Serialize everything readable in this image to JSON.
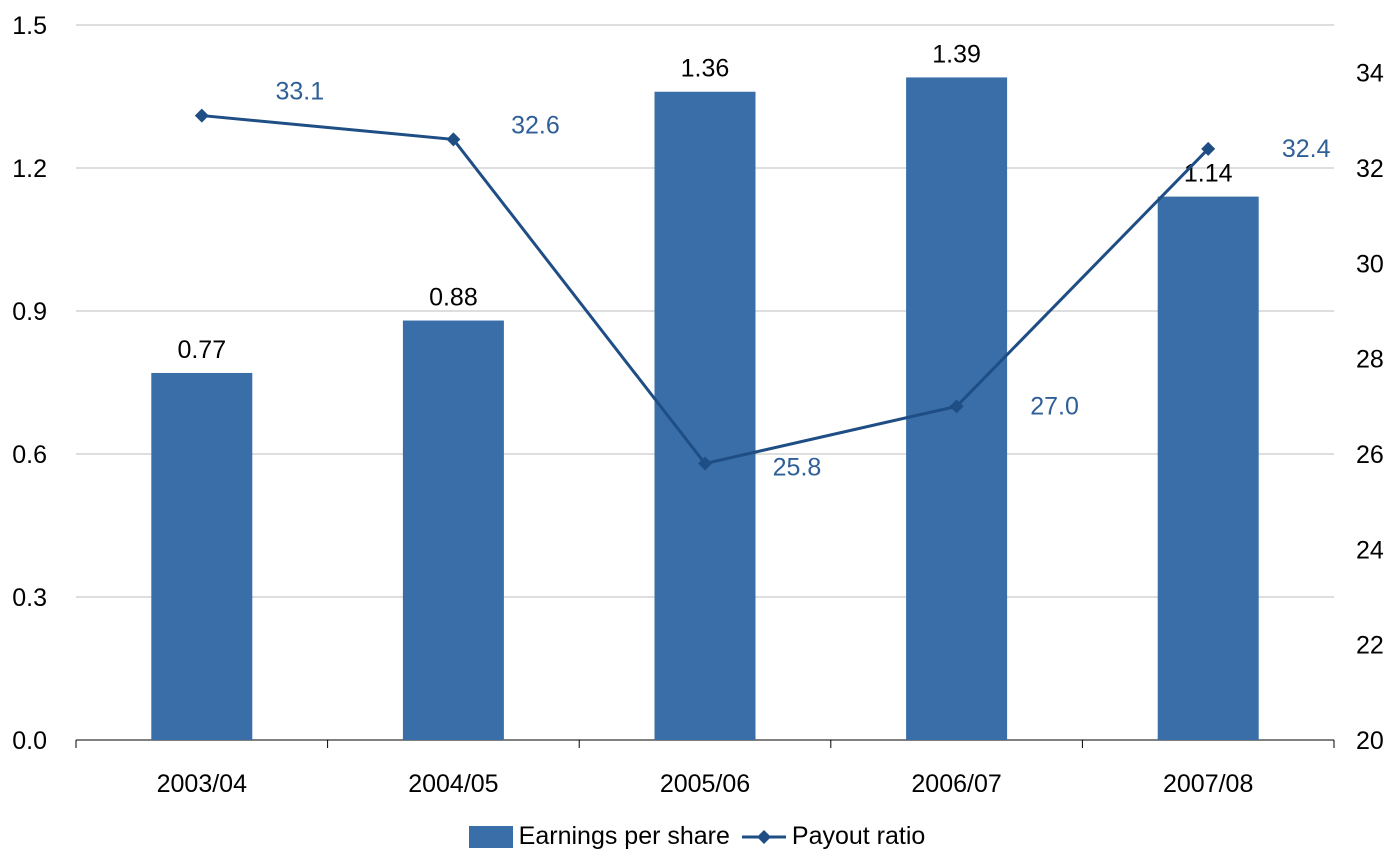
{
  "chart_data": {
    "type": "bar+line",
    "categories": [
      "2003/04",
      "2004/05",
      "2005/06",
      "2006/07",
      "2007/08"
    ],
    "series": [
      {
        "name": "Earnings per share",
        "type": "bar",
        "axis": "left",
        "values": [
          0.77,
          0.88,
          1.36,
          1.39,
          1.14
        ],
        "labels": [
          "0.77",
          "0.88",
          "1.36",
          "1.39",
          "1.14"
        ],
        "color": "#3A6EA9"
      },
      {
        "name": "Payout ratio",
        "type": "line",
        "axis": "right",
        "values": [
          33.1,
          32.6,
          25.8,
          27.0,
          32.4
        ],
        "labels": [
          "33.1",
          "32.6",
          "25.8",
          "27.0",
          "32.4"
        ],
        "color": "#1F4E85"
      }
    ],
    "y_left": {
      "min": 0,
      "max": 1.5,
      "ticks": [
        "0.0",
        "0.3",
        "0.6",
        "0.9",
        "1.2",
        "1.5"
      ]
    },
    "y_right": {
      "min": 20,
      "max": 35,
      "ticks": [
        "20",
        "22",
        "24",
        "26",
        "28",
        "30",
        "32",
        "34"
      ]
    },
    "grid": true,
    "legend_position": "bottom-center"
  }
}
